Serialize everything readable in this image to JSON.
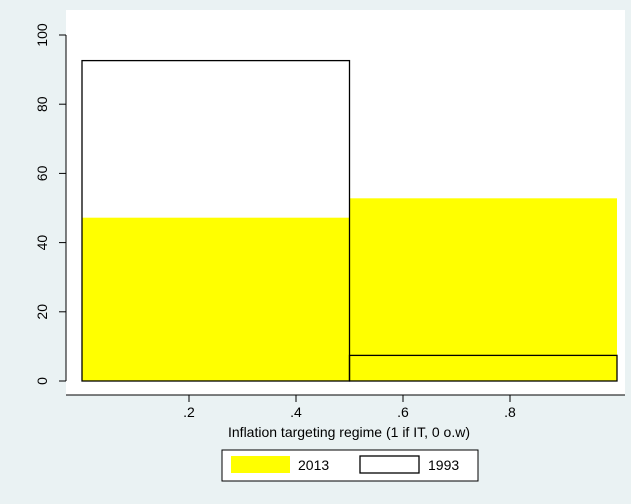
{
  "chart_data": {
    "type": "bar",
    "subtype": "histogram",
    "xlabel": "Inflation targeting regime (1 if IT, 0 o.w)",
    "ylabel": "",
    "x_ticks": [
      0.2,
      0.4,
      0.6,
      0.8
    ],
    "x_tick_labels": [
      ".2",
      ".4",
      ".6",
      ".8"
    ],
    "y_ticks": [
      0,
      20,
      40,
      60,
      80,
      100
    ],
    "y_tick_labels": [
      "0",
      "20",
      "40",
      "60",
      "80",
      "100"
    ],
    "xlim": [
      0,
      1
    ],
    "ylim": [
      0,
      100
    ],
    "bins": [
      [
        0,
        0.5
      ],
      [
        0.5,
        1.0
      ]
    ],
    "series": [
      {
        "name": "2013",
        "values": [
          47.2,
          52.8
        ],
        "fill": "#ffff00",
        "stroke": "none"
      },
      {
        "name": "1993",
        "values": [
          92.6,
          7.4
        ],
        "fill": "none",
        "stroke": "#000000"
      }
    ],
    "legend_position": "bottom",
    "grid": false,
    "colors": {
      "background": "#eaf2f3",
      "plot_area": "#ffffff",
      "axis": "#000000"
    }
  }
}
